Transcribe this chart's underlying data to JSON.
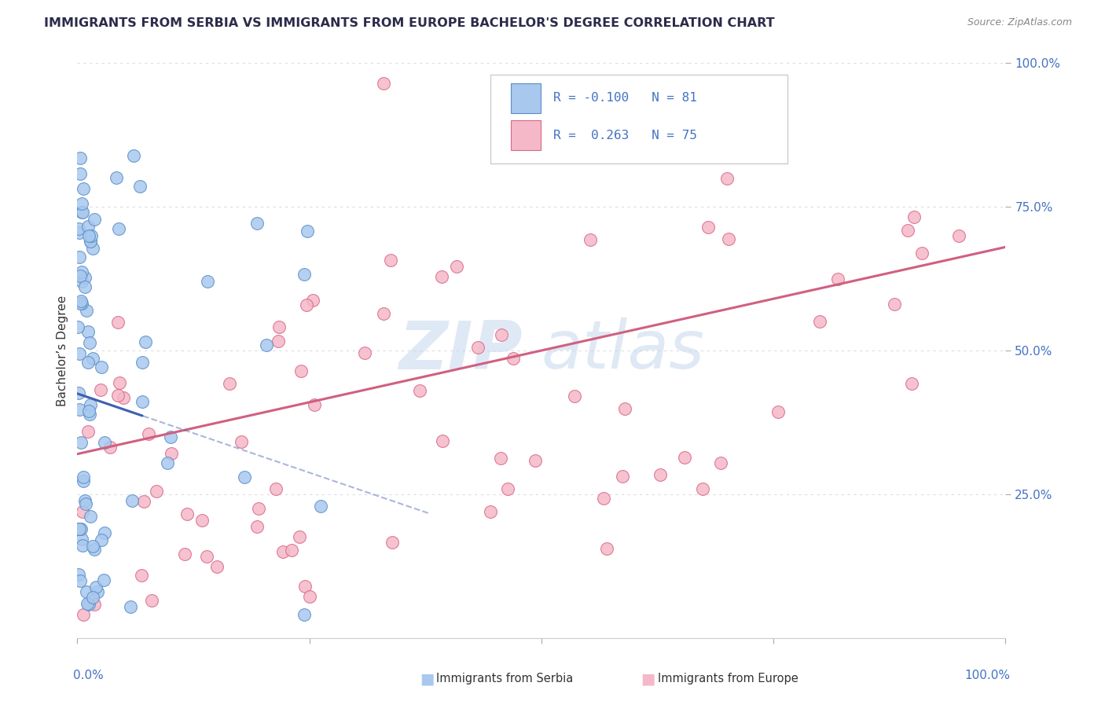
{
  "title": "IMMIGRANTS FROM SERBIA VS IMMIGRANTS FROM EUROPE BACHELOR'S DEGREE CORRELATION CHART",
  "source": "Source: ZipAtlas.com",
  "ylabel": "Bachelor’s Degree",
  "legend_r1": "R = -0.100",
  "legend_n1": "N = 81",
  "legend_r2": "R =  0.263",
  "legend_n2": "N = 75",
  "serbia_fill": "#A8C8EE",
  "serbia_edge": "#5B8EC8",
  "europe_fill": "#F5B8C8",
  "europe_edge": "#D86888",
  "serbia_trend_color": "#4060B0",
  "europe_trend_color": "#D06080",
  "legend_text_color": "#4472C4",
  "title_color": "#2B2B4B",
  "source_color": "#888888",
  "axis_tick_color": "#4472C4",
  "ylabel_color": "#333333",
  "background_color": "#FFFFFF",
  "grid_color": "#DDDDDD",
  "watermark": "ZIPatlas",
  "watermark_color": "#C5D8EE",
  "serbia_intercept": 0.425,
  "serbia_slope": -0.55,
  "europe_intercept": 0.32,
  "europe_slope": 0.36
}
